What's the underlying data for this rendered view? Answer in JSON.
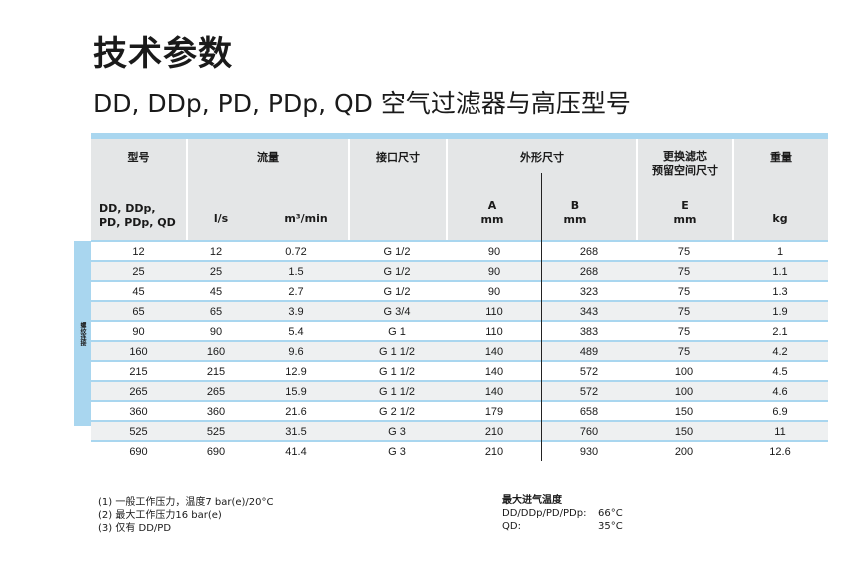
{
  "title": "技术参数",
  "subtitle": "DD, DDp, PD, PDp, QD 空气过滤器与高压型号",
  "header": {
    "model": "型号",
    "flow": "流量",
    "connection": "接口尺寸",
    "dimensions": "外形尺寸",
    "replace": "更换滤芯\n预留空间尺寸",
    "weight": "重量",
    "models_sub": "DD, DDp,\nPD, PDp, QD",
    "ls": "l/s",
    "m3": "m³/min",
    "a": "A\nmm",
    "b": "B\nmm",
    "e": "E\nmm",
    "kg": "kg"
  },
  "side_label": "螺纹连接",
  "rows": [
    [
      "12",
      "12",
      "0.72",
      "G 1/2",
      "90",
      "268",
      "75",
      "1"
    ],
    [
      "25",
      "25",
      "1.5",
      "G 1/2",
      "90",
      "268",
      "75",
      "1.1"
    ],
    [
      "45",
      "45",
      "2.7",
      "G 1/2",
      "90",
      "323",
      "75",
      "1.3"
    ],
    [
      "65",
      "65",
      "3.9",
      "G 3/4",
      "110",
      "343",
      "75",
      "1.9"
    ],
    [
      "90",
      "90",
      "5.4",
      "G 1",
      "110",
      "383",
      "75",
      "2.1"
    ],
    [
      "160",
      "160",
      "9.6",
      "G 1 1/2",
      "140",
      "489",
      "75",
      "4.2"
    ],
    [
      "215",
      "215",
      "12.9",
      "G 1 1/2",
      "140",
      "572",
      "100",
      "4.5"
    ],
    [
      "265",
      "265",
      "15.9",
      "G 1 1/2",
      "140",
      "572",
      "100",
      "4.6"
    ],
    [
      "360",
      "360",
      "21.6",
      "G 2 1/2",
      "179",
      "658",
      "150",
      "6.9"
    ],
    [
      "525",
      "525",
      "31.5",
      "G 3",
      "210",
      "760",
      "150",
      "11"
    ],
    [
      "690",
      "690",
      "41.4",
      "G 3",
      "210",
      "930",
      "200",
      "12.6"
    ]
  ],
  "notes": [
    "(1) 一般工作压力，温度7 bar(e)/20°C",
    "(2) 最大工作压力16 bar(e)",
    "(3) 仅有 DD/PD"
  ],
  "max_temp": {
    "title": "最大进气温度",
    "items": [
      {
        "label": "DD/DDp/PD/PDp:",
        "value": "66°C"
      },
      {
        "label": "QD:",
        "value": "35°C"
      }
    ]
  }
}
